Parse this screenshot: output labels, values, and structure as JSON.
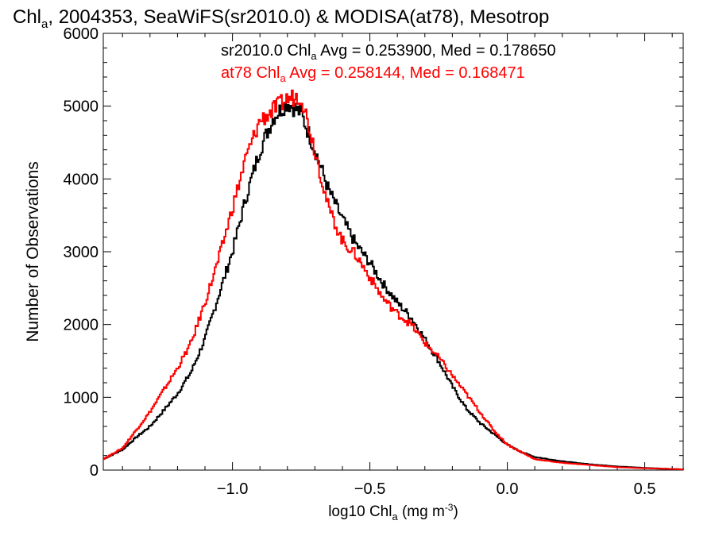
{
  "chart_data": {
    "type": "line",
    "title_parts": [
      "Chl",
      "a",
      ", 2004353, SeaWiFS(sr2010.0) & MODISA(at78), Mesotrop"
    ],
    "xlabel_parts": [
      "log10 Chl",
      "a",
      " (mg m",
      "-3",
      ")"
    ],
    "ylabel": "Number of Observations",
    "xlim": [
      -1.47,
      0.64
    ],
    "ylim": [
      0,
      6000
    ],
    "x_ticks": [
      -1.0,
      -0.5,
      0.0,
      0.5
    ],
    "x_tick_labels": [
      "−1.0",
      "−0.5",
      "0.0",
      "0.5"
    ],
    "y_ticks": [
      0,
      1000,
      2000,
      3000,
      4000,
      5000,
      6000
    ],
    "y_tick_labels": [
      "0",
      "1000",
      "2000",
      "3000",
      "4000",
      "5000",
      "6000"
    ],
    "grid": false,
    "legend_location": "top",
    "series": [
      {
        "name": "sr2010.0",
        "color": "#000000",
        "stat_label": [
          "sr2010.0 Chl",
          "a",
          " Avg = 0.253900, Med = 0.178650"
        ],
        "x": [
          -1.47,
          -1.4,
          -1.35,
          -1.3,
          -1.25,
          -1.2,
          -1.15,
          -1.1,
          -1.05,
          -1.0,
          -0.95,
          -0.9,
          -0.85,
          -0.8,
          -0.75,
          -0.7,
          -0.65,
          -0.6,
          -0.55,
          -0.5,
          -0.45,
          -0.4,
          -0.35,
          -0.3,
          -0.25,
          -0.2,
          -0.15,
          -0.1,
          -0.05,
          0.0,
          0.05,
          0.1,
          0.2,
          0.3,
          0.4,
          0.5,
          0.6,
          0.64
        ],
        "y": [
          150,
          280,
          450,
          600,
          820,
          1050,
          1350,
          1800,
          2400,
          3000,
          3750,
          4400,
          4850,
          5050,
          4900,
          4400,
          3850,
          3450,
          3100,
          2850,
          2550,
          2300,
          2100,
          1800,
          1500,
          1150,
          850,
          650,
          500,
          350,
          250,
          180,
          120,
          80,
          50,
          30,
          15,
          10
        ]
      },
      {
        "name": "at78",
        "color": "#ff0000",
        "stat_label": [
          "at78 Chl",
          "a",
          " Avg = 0.258144, Med = 0.168471"
        ],
        "x": [
          -1.47,
          -1.4,
          -1.35,
          -1.3,
          -1.25,
          -1.2,
          -1.15,
          -1.1,
          -1.05,
          -1.0,
          -0.95,
          -0.9,
          -0.85,
          -0.8,
          -0.75,
          -0.7,
          -0.65,
          -0.6,
          -0.55,
          -0.5,
          -0.45,
          -0.4,
          -0.35,
          -0.3,
          -0.25,
          -0.2,
          -0.15,
          -0.1,
          -0.05,
          0.0,
          0.05,
          0.1,
          0.2,
          0.3,
          0.4,
          0.5,
          0.6,
          0.64
        ],
        "y": [
          150,
          300,
          550,
          800,
          1100,
          1400,
          1750,
          2300,
          2900,
          3600,
          4300,
          4800,
          4950,
          5100,
          5150,
          4400,
          3600,
          3150,
          2950,
          2650,
          2350,
          2150,
          2000,
          1750,
          1550,
          1300,
          1050,
          800,
          550,
          350,
          250,
          150,
          100,
          70,
          40,
          25,
          15,
          10
        ]
      }
    ]
  }
}
